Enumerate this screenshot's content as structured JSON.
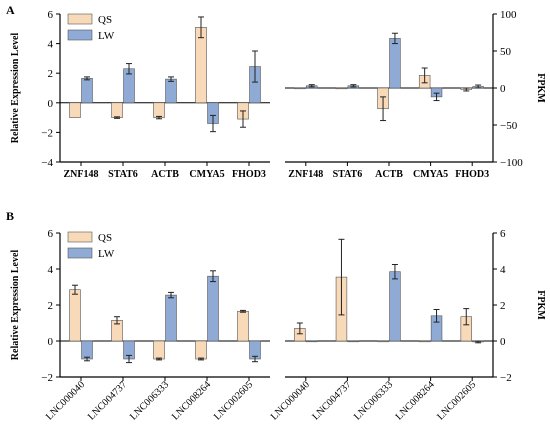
{
  "colors": {
    "qs": "#f8d9b8",
    "lw": "#8fabd5",
    "stroke": "#000000"
  },
  "chart_data": [
    {
      "type": "bar",
      "panel": "A",
      "legend": {
        "placement": "top-left",
        "entries": [
          "QS",
          "LW"
        ]
      },
      "grid": false,
      "categories": [
        "ZNF148",
        "STAT6",
        "ACTB",
        "CMYA5",
        "FHOD3"
      ],
      "left": {
        "ylabel": "Relative Expression Level",
        "ylim": [
          -4,
          6
        ],
        "ticks": [
          "−4",
          "−2",
          "0",
          "2",
          "4",
          "6"
        ],
        "series": [
          {
            "name": "QS",
            "values": [
              -1.0,
              -1.0,
              -1.0,
              5.1,
              -1.1
            ],
            "errors": [
              0.0,
              0.05,
              0.08,
              0.7,
              0.55
            ]
          },
          {
            "name": "LW",
            "values": [
              1.65,
              2.3,
              1.6,
              -1.4,
              2.45
            ],
            "errors": [
              0.1,
              0.35,
              0.15,
              0.55,
              1.05
            ]
          }
        ]
      },
      "right": {
        "ylabel": "FPKM",
        "ylim": [
          -100,
          100
        ],
        "ticks": [
          "−100",
          "−50",
          "0",
          "50",
          "100"
        ],
        "series": [
          {
            "name": "QS",
            "values": [
              0.0,
              0.0,
              -28,
              17,
              -2
            ],
            "errors": [
              0,
              0,
              16,
              10,
              2
            ]
          },
          {
            "name": "LW",
            "values": [
              3,
              3,
              67,
              -12,
              2
            ],
            "errors": [
              1.5,
              1.5,
              7,
              5,
              2
            ]
          }
        ]
      }
    },
    {
      "type": "bar",
      "panel": "B",
      "legend": {
        "placement": "top-left",
        "entries": [
          "QS",
          "LW"
        ]
      },
      "grid": false,
      "categories": [
        "LNC000040",
        "LNC004737",
        "LNC006333",
        "LNC008264",
        "LNC002605"
      ],
      "left": {
        "ylabel": "Relative Expression Level",
        "ylim": [
          -2,
          6
        ],
        "ticks": [
          "−2",
          "0",
          "2",
          "4",
          "6"
        ],
        "series": [
          {
            "name": "QS",
            "values": [
              2.85,
              1.15,
              -1.0,
              -1.0,
              1.65
            ],
            "errors": [
              0.25,
              0.2,
              0.05,
              0.05,
              0.05
            ]
          },
          {
            "name": "LW",
            "values": [
              -1.0,
              -1.0,
              2.55,
              3.6,
              -1.0
            ],
            "errors": [
              0.1,
              0.2,
              0.15,
              0.3,
              0.15
            ]
          }
        ]
      },
      "right": {
        "ylabel": "FPKM",
        "ylim": [
          -2,
          6
        ],
        "ticks": [
          "−2",
          "0",
          "2",
          "4",
          "6"
        ],
        "series": [
          {
            "name": "QS",
            "values": [
              0.7,
              3.55,
              0.0,
              0.0,
              1.35
            ],
            "errors": [
              0.3,
              2.1,
              0,
              0,
              0.45
            ]
          },
          {
            "name": "LW",
            "values": [
              0.0,
              0.0,
              3.85,
              1.4,
              -0.05
            ],
            "errors": [
              0,
              0,
              0.4,
              0.35,
              0.05
            ]
          }
        ]
      }
    }
  ]
}
